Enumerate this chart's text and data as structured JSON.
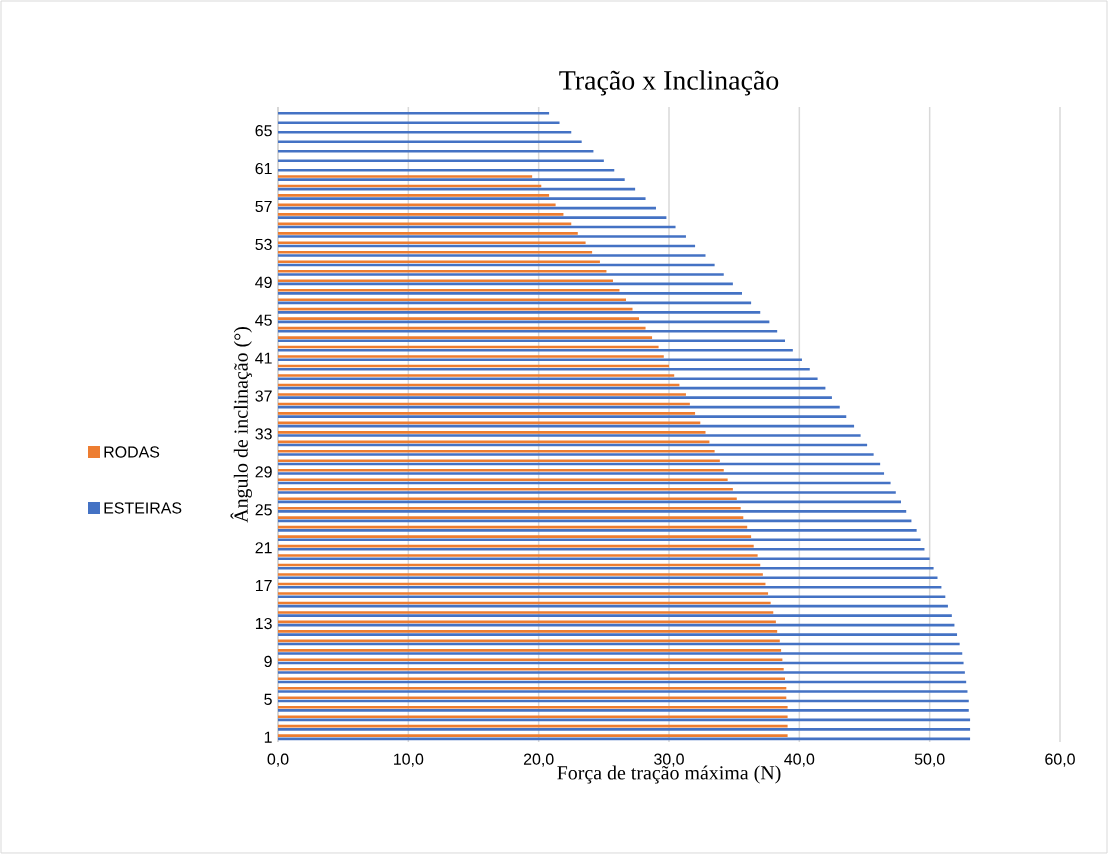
{
  "chart_data": {
    "type": "bar",
    "orientation": "horizontal",
    "title": "Tração x Inclinação",
    "xlabel": "Força de tração máxima (N)",
    "ylabel": "Ângulo de inclinação (°)",
    "categories": [
      null,
      null,
      "65",
      null,
      null,
      null,
      "61",
      null,
      null,
      null,
      "57",
      null,
      null,
      null,
      "53",
      null,
      null,
      null,
      "49",
      null,
      null,
      null,
      "45",
      null,
      null,
      null,
      "41",
      null,
      null,
      null,
      "37",
      null,
      null,
      null,
      "33",
      null,
      null,
      null,
      "29",
      null,
      null,
      null,
      "25",
      null,
      null,
      null,
      "21",
      null,
      null,
      null,
      "17",
      null,
      null,
      null,
      "13",
      null,
      null,
      null,
      "9",
      null,
      null,
      null,
      "5",
      null,
      null,
      null,
      "1"
    ],
    "series": [
      {
        "name": "RODAS",
        "color": "#ed7d31",
        "values": [
          null,
          null,
          null,
          null,
          null,
          null,
          null,
          19.5,
          20.2,
          20.8,
          21.3,
          21.9,
          22.5,
          23.0,
          23.6,
          24.1,
          24.7,
          25.2,
          25.7,
          26.2,
          26.7,
          27.2,
          27.7,
          28.2,
          28.7,
          29.2,
          29.6,
          30.0,
          30.4,
          30.8,
          31.3,
          31.6,
          32.0,
          32.4,
          32.8,
          33.1,
          33.5,
          33.9,
          34.2,
          34.5,
          34.9,
          35.2,
          35.5,
          35.7,
          36.0,
          36.3,
          36.5,
          36.8,
          37.0,
          37.2,
          37.4,
          37.6,
          37.8,
          38.0,
          38.2,
          38.3,
          38.5,
          38.6,
          38.7,
          38.8,
          38.9,
          39.0,
          39.0,
          39.1,
          39.1,
          39.1,
          39.1
        ]
      },
      {
        "name": "ESTEIRAS",
        "color": "#4472c4",
        "values": [
          20.8,
          21.6,
          22.5,
          23.3,
          24.2,
          25.0,
          25.8,
          26.6,
          27.4,
          28.2,
          29.0,
          29.8,
          30.5,
          31.3,
          32.0,
          32.8,
          33.5,
          34.2,
          34.9,
          35.6,
          36.3,
          37.0,
          37.7,
          38.3,
          38.9,
          39.5,
          40.2,
          40.8,
          41.4,
          42.0,
          42.5,
          43.1,
          43.6,
          44.2,
          44.7,
          45.2,
          45.7,
          46.2,
          46.5,
          47.0,
          47.4,
          47.8,
          48.2,
          48.6,
          49.0,
          49.3,
          49.6,
          50.0,
          50.3,
          50.6,
          50.9,
          51.2,
          51.4,
          51.7,
          51.9,
          52.1,
          52.3,
          52.5,
          52.6,
          52.7,
          52.8,
          52.9,
          53.0,
          53.0,
          53.1,
          53.1,
          53.1
        ]
      }
    ],
    "xlim": [
      0,
      60
    ],
    "xticks": [
      {
        "value": 0,
        "label": "0,0"
      },
      {
        "value": 10,
        "label": "10,0"
      },
      {
        "value": 20,
        "label": "20,0"
      },
      {
        "value": 30,
        "label": "30,0"
      },
      {
        "value": 40,
        "label": "40,0"
      },
      {
        "value": 50,
        "label": "50,0"
      },
      {
        "value": 60,
        "label": "60,0"
      }
    ],
    "grid": "x",
    "legend": "left"
  }
}
